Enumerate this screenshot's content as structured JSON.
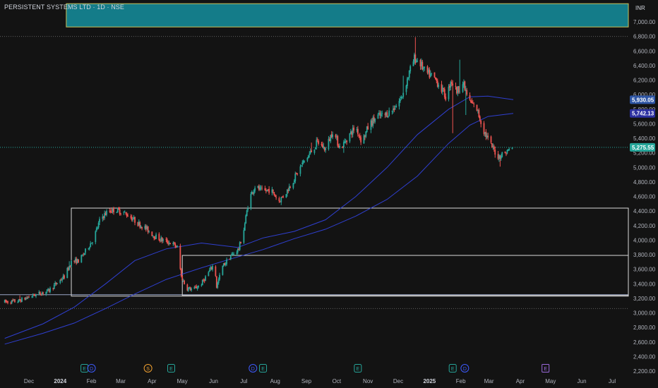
{
  "header": {
    "title": "PERSISTENT SYSTEMS LTD · 1D · NSE",
    "currency": "INR"
  },
  "colors": {
    "background": "#131313",
    "up": "#26a69a",
    "down": "#ef5350",
    "ma_line": "#2f3fd0",
    "text": "#b2b5be",
    "zone_fill": "#147c89",
    "zone_border": "#c9c25a",
    "box_border": "#d8d8d8",
    "price_line": "#26a69a",
    "event_green": "#26a69a",
    "event_blue": "#3d5afe",
    "event_orange": "#f0a030",
    "event_purple": "#9c6ade"
  },
  "chart_data": {
    "type": "candlestick",
    "y_axis": {
      "range": [
        2200,
        7250
      ],
      "ticks": [
        "2,200.00",
        "2,400.00",
        "2,600.00",
        "2,800.00",
        "3,000.00",
        "3,200.00",
        "3,400.00",
        "3,600.00",
        "3,800.00",
        "4,000.00",
        "4,200.00",
        "4,400.00",
        "4,600.00",
        "4,800.00",
        "5,000.00",
        "5,200.00",
        "5,400.00",
        "5,600.00",
        "5,800.00",
        "6,000.00",
        "6,200.00",
        "6,400.00",
        "6,600.00",
        "6,800.00",
        "7,000.00"
      ],
      "tick_values": [
        2200,
        2400,
        2600,
        2800,
        3000,
        3200,
        3400,
        3600,
        3800,
        4000,
        4200,
        4400,
        4600,
        4800,
        5000,
        5200,
        5400,
        5600,
        5800,
        6000,
        6200,
        6400,
        6600,
        6800,
        7000
      ]
    },
    "x_axis": {
      "ticks": [
        {
          "label": "Dec",
          "date": "2023-12-01",
          "bold": false
        },
        {
          "label": "2024",
          "date": "2024-01-01",
          "bold": true
        },
        {
          "label": "Feb",
          "date": "2024-02-01",
          "bold": false
        },
        {
          "label": "Mar",
          "date": "2024-03-01",
          "bold": false
        },
        {
          "label": "Apr",
          "date": "2024-04-01",
          "bold": false
        },
        {
          "label": "May",
          "date": "2024-05-01",
          "bold": false
        },
        {
          "label": "Jun",
          "date": "2024-06-01",
          "bold": false
        },
        {
          "label": "Jul",
          "date": "2024-07-01",
          "bold": false
        },
        {
          "label": "Aug",
          "date": "2024-08-01",
          "bold": false
        },
        {
          "label": "Sep",
          "date": "2024-09-01",
          "bold": false
        },
        {
          "label": "Oct",
          "date": "2024-10-01",
          "bold": false
        },
        {
          "label": "Nov",
          "date": "2024-11-01",
          "bold": false
        },
        {
          "label": "Dec",
          "date": "2024-12-01",
          "bold": false
        },
        {
          "label": "2025",
          "date": "2025-01-01",
          "bold": true
        },
        {
          "label": "Feb",
          "date": "2025-02-01",
          "bold": false
        },
        {
          "label": "Mar",
          "date": "2025-03-01",
          "bold": false
        },
        {
          "label": "Apr",
          "date": "2025-04-01",
          "bold": false
        },
        {
          "label": "May",
          "date": "2025-05-01",
          "bold": false
        },
        {
          "label": "Jun",
          "date": "2025-06-01",
          "bold": false
        },
        {
          "label": "Jul",
          "date": "2025-07-01",
          "bold": false
        }
      ]
    },
    "price_path": [
      [
        "2023-11-07",
        3150
      ],
      [
        "2023-11-20",
        3160
      ],
      [
        "2023-12-05",
        3240
      ],
      [
        "2023-12-20",
        3300
      ],
      [
        "2024-01-05",
        3500
      ],
      [
        "2024-01-12",
        3700
      ],
      [
        "2024-01-20",
        3720
      ],
      [
        "2024-01-27",
        3870
      ],
      [
        "2024-02-03",
        4020
      ],
      [
        "2024-02-10",
        4300
      ],
      [
        "2024-02-17",
        4390
      ],
      [
        "2024-02-24",
        4420
      ],
      [
        "2024-03-02",
        4390
      ],
      [
        "2024-03-10",
        4330
      ],
      [
        "2024-03-18",
        4230
      ],
      [
        "2024-03-26",
        4160
      ],
      [
        "2024-04-03",
        4060
      ],
      [
        "2024-04-11",
        4000
      ],
      [
        "2024-04-20",
        3960
      ],
      [
        "2024-04-26",
        3900
      ],
      [
        "2024-04-30",
        3500
      ],
      [
        "2024-05-05",
        3340
      ],
      [
        "2024-05-12",
        3320
      ],
      [
        "2024-05-20",
        3400
      ],
      [
        "2024-05-28",
        3580
      ],
      [
        "2024-06-02",
        3680
      ],
      [
        "2024-06-04",
        3360
      ],
      [
        "2024-06-10",
        3640
      ],
      [
        "2024-06-18",
        3780
      ],
      [
        "2024-06-26",
        3880
      ],
      [
        "2024-07-01",
        4150
      ],
      [
        "2024-07-06",
        4560
      ],
      [
        "2024-07-12",
        4740
      ],
      [
        "2024-07-20",
        4660
      ],
      [
        "2024-07-27",
        4700
      ],
      [
        "2024-08-05",
        4540
      ],
      [
        "2024-08-12",
        4660
      ],
      [
        "2024-08-20",
        4850
      ],
      [
        "2024-08-28",
        5050
      ],
      [
        "2024-09-05",
        5200
      ],
      [
        "2024-09-12",
        5350
      ],
      [
        "2024-09-20",
        5250
      ],
      [
        "2024-09-27",
        5500
      ],
      [
        "2024-10-05",
        5250
      ],
      [
        "2024-10-12",
        5420
      ],
      [
        "2024-10-20",
        5560
      ],
      [
        "2024-10-26",
        5350
      ],
      [
        "2024-11-02",
        5580
      ],
      [
        "2024-11-10",
        5700
      ],
      [
        "2024-11-18",
        5720
      ],
      [
        "2024-11-26",
        5800
      ],
      [
        "2024-12-04",
        5950
      ],
      [
        "2024-12-12",
        6300
      ],
      [
        "2024-12-17",
        6500
      ],
      [
        "2024-12-22",
        6450
      ],
      [
        "2024-12-28",
        6300
      ],
      [
        "2025-01-04",
        6250
      ],
      [
        "2025-01-10",
        6150
      ],
      [
        "2025-01-18",
        5950
      ],
      [
        "2025-01-22",
        6200
      ],
      [
        "2025-01-28",
        6050
      ],
      [
        "2025-02-03",
        6150
      ],
      [
        "2025-02-10",
        5900
      ],
      [
        "2025-02-17",
        5800
      ],
      [
        "2025-02-24",
        5500
      ],
      [
        "2025-03-03",
        5300
      ],
      [
        "2025-03-10",
        5150
      ],
      [
        "2025-03-17",
        5200
      ],
      [
        "2025-03-24",
        5276
      ]
    ],
    "spikes": [
      [
        "2023-11-22",
        3240
      ],
      [
        "2024-01-10",
        3710
      ],
      [
        "2024-02-21",
        4450
      ],
      [
        "2024-07-03",
        4300
      ],
      [
        "2024-09-06",
        5340
      ],
      [
        "2024-10-08",
        5200
      ],
      [
        "2024-12-06",
        6260
      ],
      [
        "2024-12-18",
        6790
      ],
      [
        "2025-01-24",
        5470
      ],
      [
        "2025-01-31",
        6480
      ],
      [
        "2025-02-08",
        6280
      ],
      [
        "2025-03-12",
        5010
      ],
      [
        "2025-02-06",
        5720
      ]
    ],
    "ma_fast": [
      [
        "2023-11-07",
        2650
      ],
      [
        "2023-12-15",
        2850
      ],
      [
        "2024-01-15",
        3080
      ],
      [
        "2024-02-15",
        3400
      ],
      [
        "2024-03-15",
        3720
      ],
      [
        "2024-04-15",
        3880
      ],
      [
        "2024-05-20",
        3960
      ],
      [
        "2024-06-25",
        3900
      ],
      [
        "2024-07-20",
        4030
      ],
      [
        "2024-08-20",
        4120
      ],
      [
        "2024-09-20",
        4280
      ],
      [
        "2024-10-20",
        4600
      ],
      [
        "2024-11-20",
        5000
      ],
      [
        "2024-12-20",
        5450
      ],
      [
        "2025-01-20",
        5800
      ],
      [
        "2025-02-10",
        5970
      ],
      [
        "2025-02-28",
        5980
      ],
      [
        "2025-03-25",
        5930
      ]
    ],
    "ma_slow": [
      [
        "2023-11-07",
        2570
      ],
      [
        "2023-12-15",
        2720
      ],
      [
        "2024-01-15",
        2860
      ],
      [
        "2024-02-15",
        3060
      ],
      [
        "2024-03-15",
        3260
      ],
      [
        "2024-04-15",
        3460
      ],
      [
        "2024-05-20",
        3620
      ],
      [
        "2024-06-20",
        3750
      ],
      [
        "2024-07-20",
        3870
      ],
      [
        "2024-08-20",
        4020
      ],
      [
        "2024-09-20",
        4150
      ],
      [
        "2024-10-20",
        4330
      ],
      [
        "2024-11-20",
        4560
      ],
      [
        "2024-12-20",
        4880
      ],
      [
        "2025-01-20",
        5330
      ],
      [
        "2025-02-10",
        5580
      ],
      [
        "2025-02-28",
        5700
      ],
      [
        "2025-03-25",
        5742
      ]
    ],
    "zone": {
      "date_start": "2024-01-07",
      "date_end": "2025-07-15",
      "low": 6930,
      "high": 7250
    },
    "rectangles": [
      {
        "date_start": "2024-01-12",
        "date_end": "2025-07-15",
        "low": 3230,
        "high": 4440
      },
      {
        "date_start": "2024-05-01",
        "date_end": "2025-07-15",
        "low": 3240,
        "high": 3790
      }
    ],
    "horizontal_lines": [
      {
        "value": 6800,
        "style": "dotted",
        "color": "#606060"
      },
      {
        "value": 3060,
        "style": "dotted",
        "color": "#606060"
      },
      {
        "value": 3250,
        "style": "solid",
        "color": "#9aa6c8"
      },
      {
        "value": 5275.55,
        "style": "dotted",
        "color": "#26a69a"
      }
    ],
    "price_tags": [
      {
        "label": "5,930.05",
        "value": 5930.05,
        "color": "#2f56a5"
      },
      {
        "label": "5,742.13",
        "value": 5742.13,
        "color": "#2b2fa0"
      },
      {
        "label": "5,275.55",
        "value": 5275.55,
        "color": "#26a69a"
      }
    ],
    "events": [
      {
        "letter": "E",
        "date": "2024-01-25",
        "color": "green"
      },
      {
        "letter": "D",
        "date": "2024-02-01",
        "color": "blue"
      },
      {
        "letter": "S",
        "date": "2024-03-28",
        "color": "orange"
      },
      {
        "letter": "E",
        "date": "2024-04-20",
        "color": "green"
      },
      {
        "letter": "D",
        "date": "2024-07-10",
        "color": "blue"
      },
      {
        "letter": "E",
        "date": "2024-07-20",
        "color": "green"
      },
      {
        "letter": "E",
        "date": "2024-10-22",
        "color": "green"
      },
      {
        "letter": "E",
        "date": "2025-01-24",
        "color": "green"
      },
      {
        "letter": "D",
        "date": "2025-02-05",
        "color": "blue"
      },
      {
        "letter": "E",
        "date": "2025-04-26",
        "color": "purple"
      }
    ]
  }
}
